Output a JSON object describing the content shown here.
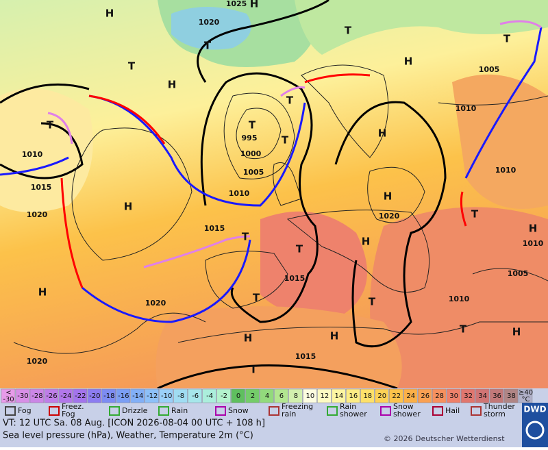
{
  "map": {
    "pressure_systems": [
      "H",
      "H",
      "T",
      "T",
      "T",
      "H",
      "H",
      "T",
      "T",
      "T",
      "T",
      "T",
      "H",
      "H",
      "H",
      "T",
      "H",
      "T",
      "T",
      "T",
      "T",
      "H",
      "H",
      "H",
      "T",
      "H",
      "T",
      "H"
    ],
    "isobar_labels": [
      "1025",
      "1020",
      "995",
      "1000",
      "1005",
      "1010",
      "1015",
      "1020",
      "1020",
      "1015",
      "1015",
      "1020",
      "1010",
      "1015",
      "1020",
      "1005",
      "1010",
      "1010",
      "1010",
      "1005",
      "1010"
    ]
  },
  "legend": {
    "temperature_cells": [
      {
        "lines": [
          "<",
          "-30"
        ],
        "color": "#e79be9"
      },
      {
        "lines": [
          "-30"
        ],
        "color": "#d78fe6"
      },
      {
        "lines": [
          "-28"
        ],
        "color": "#cb86e6"
      },
      {
        "lines": [
          "-26"
        ],
        "color": "#be7ee8"
      },
      {
        "lines": [
          "-24"
        ],
        "color": "#b277ea"
      },
      {
        "lines": [
          "-22"
        ],
        "color": "#a374ec"
      },
      {
        "lines": [
          "-20"
        ],
        "color": "#8c7cf0"
      },
      {
        "lines": [
          "-18"
        ],
        "color": "#7d8cf2"
      },
      {
        "lines": [
          "-16"
        ],
        "color": "#7b9ef4"
      },
      {
        "lines": [
          "-14"
        ],
        "color": "#82aff6"
      },
      {
        "lines": [
          "-12"
        ],
        "color": "#8dc0f8"
      },
      {
        "lines": [
          "-10"
        ],
        "color": "#9ad0f8"
      },
      {
        "lines": [
          "-8"
        ],
        "color": "#a0dcf2"
      },
      {
        "lines": [
          "-6"
        ],
        "color": "#a6e6ea"
      },
      {
        "lines": [
          "-4"
        ],
        "color": "#abeedc"
      },
      {
        "lines": [
          "-2"
        ],
        "color": "#b3f2cd"
      },
      {
        "lines": [
          "0"
        ],
        "color": "#5fbf5f"
      },
      {
        "lines": [
          "2"
        ],
        "color": "#74cc6a"
      },
      {
        "lines": [
          "4"
        ],
        "color": "#92da7c"
      },
      {
        "lines": [
          "6"
        ],
        "color": "#b2e690"
      },
      {
        "lines": [
          "8"
        ],
        "color": "#d2f0ae"
      },
      {
        "lines": [
          "10"
        ],
        "color": "#fdfde0"
      },
      {
        "lines": [
          "12"
        ],
        "color": "#fdfbc2"
      },
      {
        "lines": [
          "14"
        ],
        "color": "#fdf5a2"
      },
      {
        "lines": [
          "16"
        ],
        "color": "#fdec84"
      },
      {
        "lines": [
          "18"
        ],
        "color": "#fde06a"
      },
      {
        "lines": [
          "20"
        ],
        "color": "#fdd156"
      },
      {
        "lines": [
          "22"
        ],
        "color": "#fcc24a"
      },
      {
        "lines": [
          "24"
        ],
        "color": "#fbb048"
      },
      {
        "lines": [
          "26"
        ],
        "color": "#f9a052"
      },
      {
        "lines": [
          "28"
        ],
        "color": "#f6905e"
      },
      {
        "lines": [
          "30"
        ],
        "color": "#ee806a"
      },
      {
        "lines": [
          "32"
        ],
        "color": "#e0766e"
      },
      {
        "lines": [
          "34"
        ],
        "color": "#d07474"
      },
      {
        "lines": [
          "36"
        ],
        "color": "#c27878"
      },
      {
        "lines": [
          "38"
        ],
        "color": "#b08585"
      },
      {
        "lines": [
          "≥40",
          "°C"
        ],
        "color": "#b0b0c8"
      }
    ],
    "weather_items": [
      {
        "lines": [
          "Fog"
        ]
      },
      {
        "lines": [
          "Freez.",
          "Fog"
        ]
      },
      {
        "lines": [
          "Drizzle"
        ]
      },
      {
        "lines": [
          "Rain"
        ]
      },
      {
        "lines": [
          "Snow"
        ]
      },
      {
        "lines": [
          "Freezing",
          "rain"
        ]
      },
      {
        "lines": [
          "Rain",
          "shower"
        ]
      },
      {
        "lines": [
          "Snow",
          "shower"
        ]
      },
      {
        "lines": [
          "Hail"
        ]
      },
      {
        "lines": [
          "Thunder",
          "storm"
        ]
      }
    ],
    "logo": "DWD"
  },
  "info": {
    "valid_time": "VT: 12 UTC Sa.  08 Aug. [ICON 2026-08-04  00 UTC + 108 h]",
    "parameters": "Sea level pressure (hPa), Weather, Temperature 2m (°C)",
    "copyright": "© 2026 Deutscher Wetterdienst"
  }
}
